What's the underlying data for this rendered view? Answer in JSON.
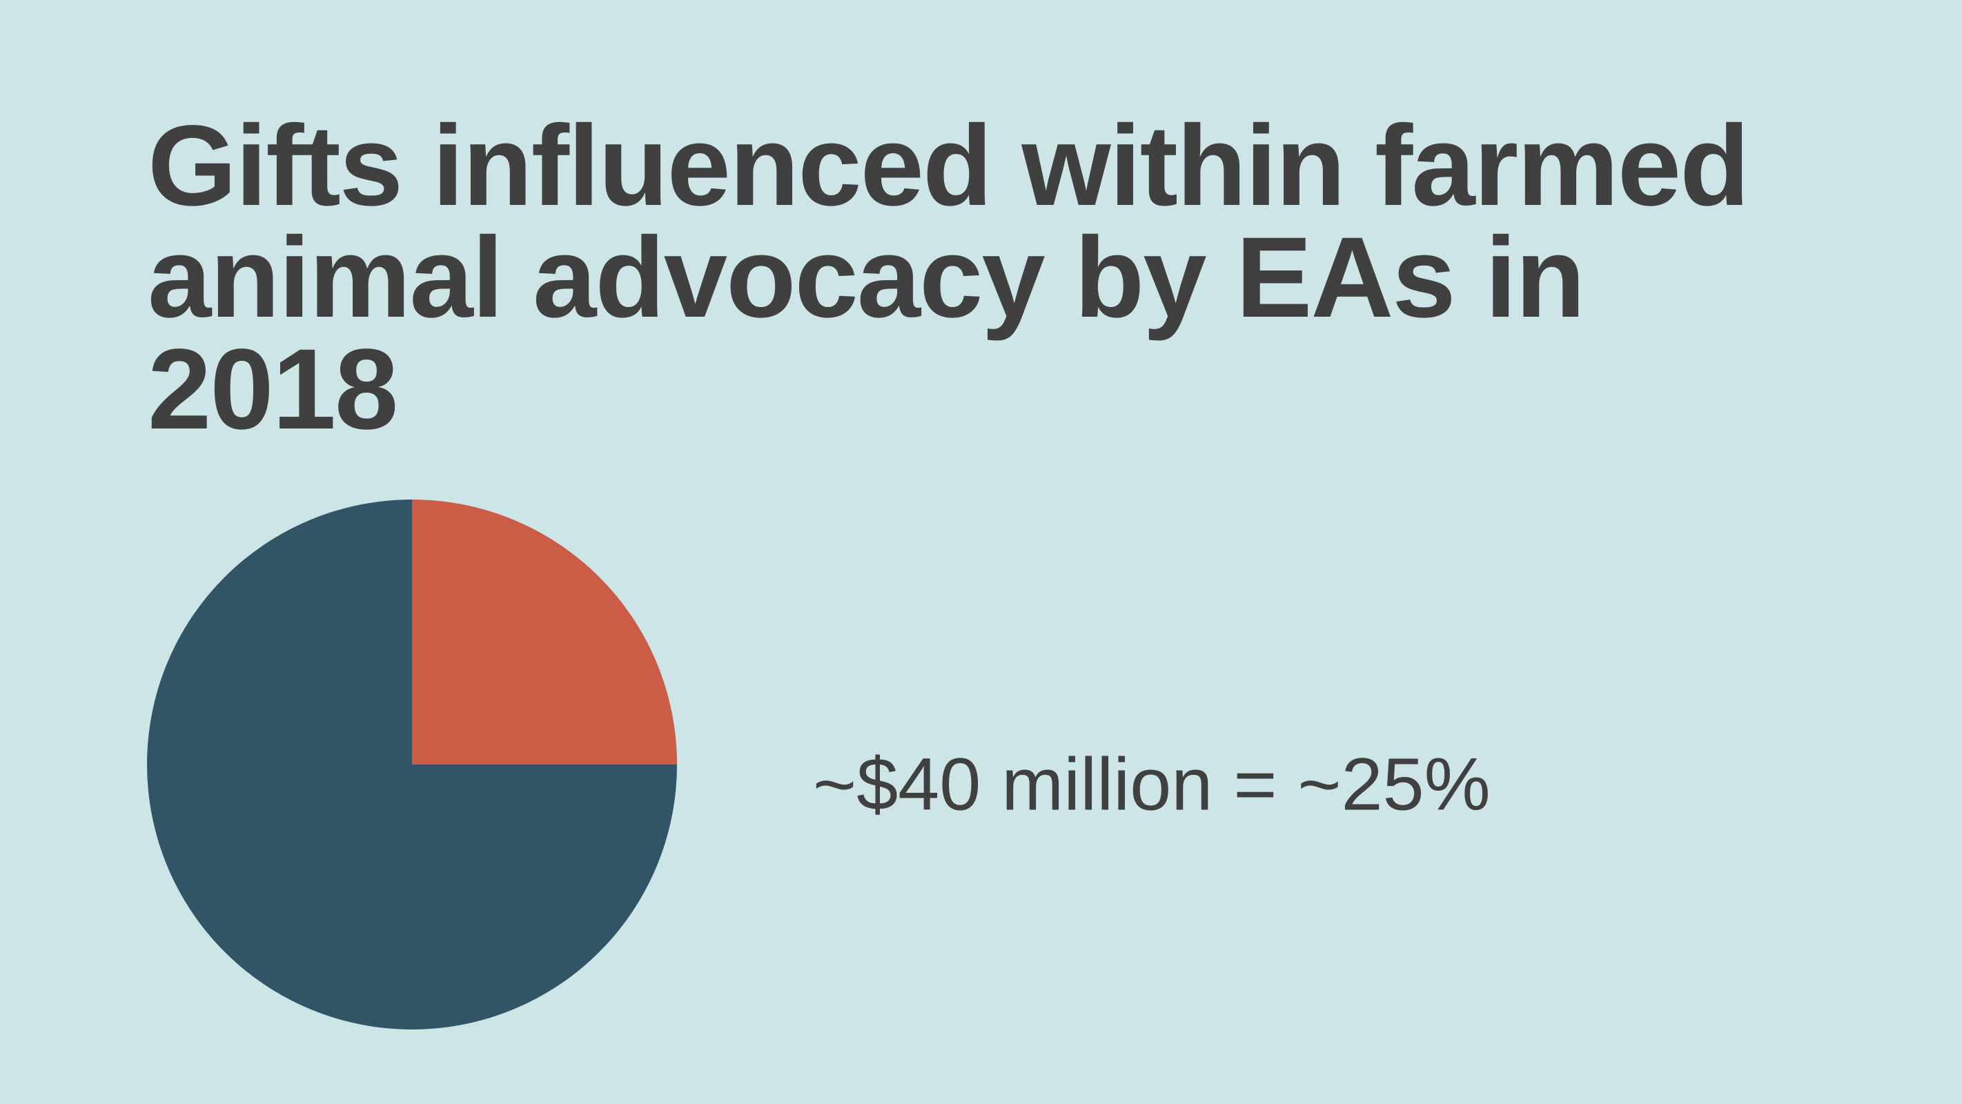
{
  "chart_data": {
    "type": "pie",
    "title": "Gifts influenced within farmed animal advocacy by EAs in 2018",
    "values": [
      25,
      75
    ],
    "colors": [
      "#cc5c45",
      "#315466"
    ],
    "annotation": "~$40 million = ~25%"
  }
}
